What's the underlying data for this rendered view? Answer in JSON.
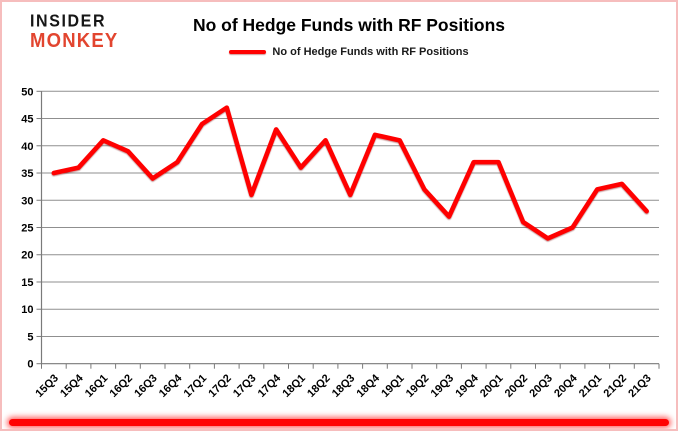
{
  "logo": {
    "line1": "INSIDER",
    "line2": "MONKEY"
  },
  "header": {
    "title": "No of Hedge Funds with RF Positions"
  },
  "legend": {
    "label": "No of Hedge Funds with RF Positions"
  },
  "colors": {
    "series_line": "#ff0000",
    "logo_black": "#161616",
    "logo_red": "#e2452f",
    "gridline": "#8f8f8f",
    "frame_pink": "#f6bdbd",
    "bottom_bar": "#ff0202"
  },
  "chart_data": {
    "type": "line",
    "title": "No of Hedge Funds with RF Positions",
    "xlabel": "",
    "ylabel": "",
    "ylim": [
      0,
      50
    ],
    "ytick_step": 5,
    "grid": true,
    "legend_position": "top-center",
    "categories": [
      "15Q3",
      "15Q4",
      "16Q1",
      "16Q2",
      "16Q3",
      "16Q4",
      "17Q1",
      "17Q2",
      "17Q3",
      "17Q4",
      "18Q1",
      "18Q2",
      "18Q3",
      "18Q4",
      "19Q1",
      "19Q2",
      "19Q3",
      "19Q4",
      "20Q1",
      "20Q2",
      "20Q3",
      "20Q4",
      "21Q1",
      "21Q2",
      "21Q3"
    ],
    "series": [
      {
        "name": "No of Hedge Funds with RF Positions",
        "color": "#ff0000",
        "values": [
          35,
          36,
          41,
          39,
          34,
          37,
          44,
          47,
          31,
          43,
          36,
          41,
          31,
          42,
          41,
          32,
          27,
          37,
          37,
          26,
          23,
          25,
          32,
          33,
          28
        ]
      }
    ]
  }
}
